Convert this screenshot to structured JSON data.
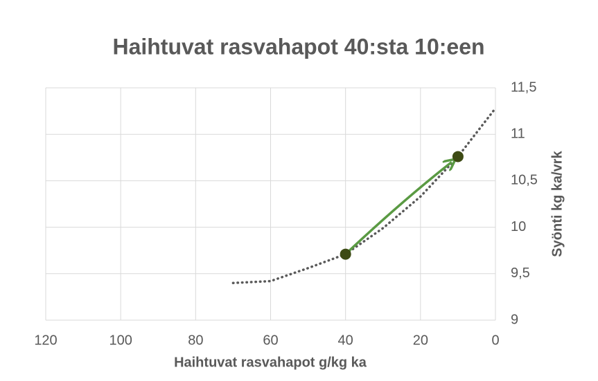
{
  "chart_data": {
    "type": "scatter",
    "title": "Haihtuvat rasvahapot 40:sta 10:een",
    "x_label": "Haihtuvat rasvahapot g/kg ka",
    "y_label": "Syönti kg ka/vrk",
    "xlim": [
      120,
      0
    ],
    "xticks": [
      120,
      100,
      80,
      60,
      40,
      20,
      0
    ],
    "ylim": [
      9,
      11.5
    ],
    "yticks": [
      9,
      {
        "value": 9.5,
        "label": "9,5"
      },
      10,
      {
        "value": 10.5,
        "label": "10,5"
      },
      11,
      {
        "value": 11.5,
        "label": "11,5"
      }
    ],
    "grid": true,
    "series": [
      {
        "color": "#595959",
        "style": "dotted",
        "x": [
          70,
          60,
          50,
          40,
          30,
          20,
          10,
          0
        ],
        "values": [
          9.4,
          9.42,
          9.56,
          9.71,
          9.99,
          10.33,
          10.76,
          11.28
        ]
      },
      {
        "color": "#3d4a14",
        "style": "markers",
        "x": [
          40,
          10
        ],
        "values": [
          9.71,
          10.76
        ]
      }
    ],
    "arrow_color": "#5a9a43"
  }
}
